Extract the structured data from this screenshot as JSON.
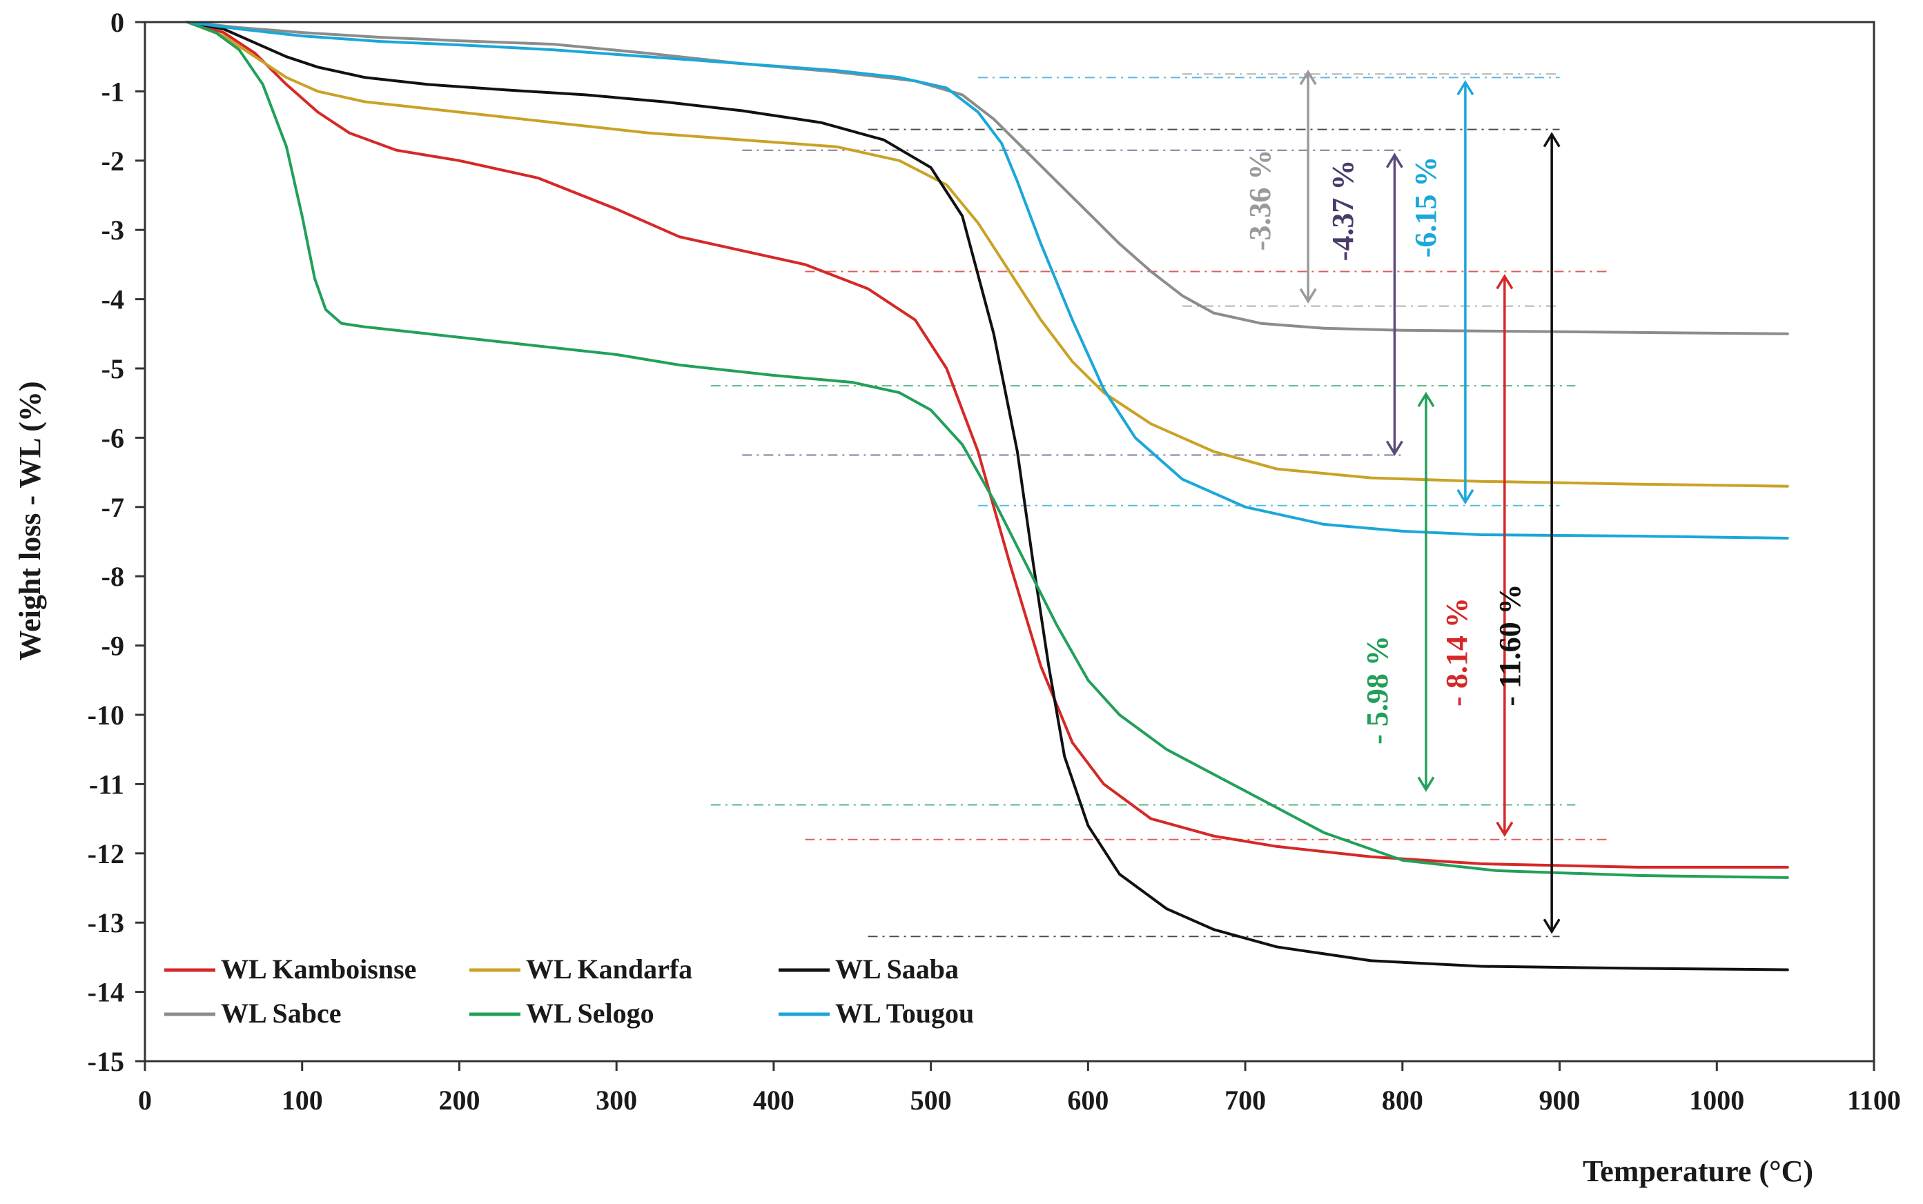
{
  "chart_data": {
    "type": "line",
    "title": "",
    "xlabel": "Temperature (°C)",
    "ylabel": "Weight loss - WL (%)",
    "xlim": [
      0,
      1100
    ],
    "ylim": [
      -15,
      0
    ],
    "xticks": [
      "0",
      "100",
      "200",
      "300",
      "400",
      "500",
      "600",
      "700",
      "800",
      "900",
      "1000",
      "1100"
    ],
    "yticks": [
      "0",
      "-1",
      "-2",
      "-3",
      "-4",
      "-5",
      "-6",
      "-7",
      "-8",
      "-9",
      "-10",
      "-11",
      "-12",
      "-13",
      "-14",
      "-15"
    ],
    "grid": false,
    "legend_position": "bottom-left",
    "series": [
      {
        "name": "WL Kamboisnse",
        "color": "#d62828",
        "x": [
          27,
          50,
          70,
          90,
          110,
          130,
          160,
          200,
          250,
          300,
          340,
          380,
          420,
          460,
          490,
          510,
          530,
          550,
          570,
          590,
          610,
          640,
          680,
          720,
          780,
          850,
          950,
          1045
        ],
        "y": [
          0,
          -0.15,
          -0.45,
          -0.9,
          -1.3,
          -1.6,
          -1.85,
          -2.0,
          -2.25,
          -2.7,
          -3.1,
          -3.3,
          -3.5,
          -3.85,
          -4.3,
          -5.0,
          -6.2,
          -7.8,
          -9.3,
          -10.4,
          -11.0,
          -11.5,
          -11.75,
          -11.9,
          -12.05,
          -12.15,
          -12.2,
          -12.2
        ]
      },
      {
        "name": "WL Kandarfa",
        "color": "#c9a227",
        "x": [
          27,
          50,
          70,
          90,
          110,
          140,
          200,
          260,
          320,
          380,
          440,
          480,
          510,
          530,
          550,
          570,
          590,
          610,
          640,
          680,
          720,
          780,
          850,
          950,
          1045
        ],
        "y": [
          0,
          -0.2,
          -0.5,
          -0.8,
          -1.0,
          -1.15,
          -1.3,
          -1.45,
          -1.6,
          -1.7,
          -1.8,
          -2.0,
          -2.35,
          -2.9,
          -3.6,
          -4.3,
          -4.9,
          -5.35,
          -5.8,
          -6.2,
          -6.45,
          -6.58,
          -6.63,
          -6.67,
          -6.7
        ]
      },
      {
        "name": "WL Saaba",
        "color": "#111111",
        "x": [
          27,
          50,
          70,
          90,
          110,
          140,
          180,
          230,
          280,
          330,
          380,
          430,
          470,
          500,
          520,
          540,
          555,
          565,
          575,
          585,
          600,
          620,
          650,
          680,
          720,
          780,
          850,
          950,
          1045
        ],
        "y": [
          0,
          -0.1,
          -0.3,
          -0.5,
          -0.65,
          -0.8,
          -0.9,
          -0.98,
          -1.05,
          -1.15,
          -1.28,
          -1.45,
          -1.7,
          -2.1,
          -2.8,
          -4.5,
          -6.2,
          -7.8,
          -9.3,
          -10.6,
          -11.6,
          -12.3,
          -12.8,
          -13.1,
          -13.35,
          -13.55,
          -13.63,
          -13.66,
          -13.68
        ]
      },
      {
        "name": "WL Sabce",
        "color": "#8c8c8c",
        "x": [
          27,
          60,
          100,
          150,
          200,
          260,
          320,
          380,
          440,
          490,
          520,
          540,
          560,
          580,
          600,
          620,
          640,
          660,
          680,
          710,
          750,
          800,
          900,
          1045
        ],
        "y": [
          0,
          -0.08,
          -0.15,
          -0.22,
          -0.27,
          -0.32,
          -0.45,
          -0.6,
          -0.72,
          -0.85,
          -1.05,
          -1.4,
          -1.85,
          -2.3,
          -2.75,
          -3.2,
          -3.6,
          -3.95,
          -4.2,
          -4.35,
          -4.42,
          -4.45,
          -4.47,
          -4.5
        ]
      },
      {
        "name": "WL Selogo",
        "color": "#22a05a",
        "x": [
          27,
          45,
          60,
          75,
          90,
          100,
          108,
          115,
          125,
          140,
          180,
          240,
          300,
          340,
          400,
          450,
          480,
          500,
          520,
          540,
          560,
          580,
          600,
          620,
          650,
          700,
          750,
          800,
          860,
          950,
          1045
        ],
        "y": [
          0,
          -0.15,
          -0.4,
          -0.9,
          -1.8,
          -2.8,
          -3.7,
          -4.15,
          -4.35,
          -4.4,
          -4.5,
          -4.65,
          -4.8,
          -4.95,
          -5.1,
          -5.2,
          -5.35,
          -5.6,
          -6.1,
          -6.9,
          -7.8,
          -8.7,
          -9.5,
          -10.0,
          -10.5,
          -11.1,
          -11.7,
          -12.1,
          -12.25,
          -12.32,
          -12.35
        ]
      },
      {
        "name": "WL Tougou",
        "color": "#1ba7d8",
        "x": [
          27,
          60,
          100,
          150,
          200,
          260,
          320,
          380,
          440,
          480,
          510,
          530,
          545,
          555,
          570,
          590,
          610,
          630,
          660,
          700,
          750,
          800,
          850,
          950,
          1045
        ],
        "y": [
          0,
          -0.1,
          -0.2,
          -0.28,
          -0.33,
          -0.4,
          -0.5,
          -0.6,
          -0.7,
          -0.8,
          -0.95,
          -1.3,
          -1.75,
          -2.3,
          -3.2,
          -4.3,
          -5.3,
          -6.0,
          -6.6,
          -7.0,
          -7.25,
          -7.35,
          -7.4,
          -7.42,
          -7.45
        ]
      }
    ],
    "annotations": [
      {
        "text": "-3.36 %",
        "color": "#9a9a9a",
        "label_color": "#9a9a9a",
        "x": 740,
        "y_top": -0.7,
        "y_bottom": -4.05,
        "ref_top": -0.75,
        "ref_bottom": -4.1,
        "ref_x": [
          660,
          900
        ]
      },
      {
        "text": "-4.37 %",
        "color": "#5b4a7a",
        "label_color": "#4a3b6b",
        "x": 795,
        "y_top": -1.9,
        "y_bottom": -6.25,
        "ref_top": -1.85,
        "ref_bottom": -6.25,
        "ref_x": [
          380,
          800
        ]
      },
      {
        "text": "-6.15 %",
        "color": "#1ba7d8",
        "label_color": "#1ba7d8",
        "x": 840,
        "y_top": -0.85,
        "y_bottom": -6.95,
        "ref_top": -0.8,
        "ref_bottom": -6.98,
        "ref_x": [
          530,
          900
        ]
      },
      {
        "text": "- 5.98 %",
        "color": "#22a05a",
        "label_color": "#22a05a",
        "x": 815,
        "y_top": -5.35,
        "y_bottom": -11.1,
        "ref_top": -5.25,
        "ref_bottom": -11.3,
        "ref_x": [
          360,
          910
        ]
      },
      {
        "text": "- 8.14 %",
        "color": "#d62828",
        "label_color": "#d62828",
        "x": 865,
        "y_top": -3.65,
        "y_bottom": -11.75,
        "ref_top": -3.6,
        "ref_bottom": -11.8,
        "ref_x": [
          420,
          930
        ]
      },
      {
        "text": "- 11.60 %",
        "color": "#111111",
        "label_color": "#111111",
        "x": 895,
        "y_top": -1.6,
        "y_bottom": -13.15,
        "ref_top": -1.55,
        "ref_bottom": -13.2,
        "ref_x": [
          460,
          900
        ]
      }
    ]
  }
}
